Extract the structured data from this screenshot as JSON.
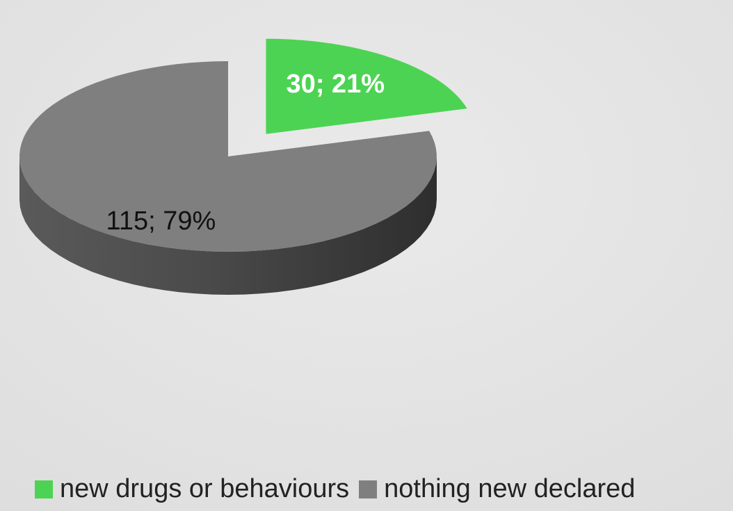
{
  "chart_data": {
    "type": "pie",
    "title": "",
    "slices": [
      {
        "name": "new drugs or behaviours",
        "value": 30,
        "percent": 21,
        "label": "30; 21%",
        "color": "#4cd353",
        "side_color": "#1f5c20",
        "exploded": true
      },
      {
        "name": "nothing new declared",
        "value": 115,
        "percent": 79,
        "label": "115; 79%",
        "color": "#7f7f7f",
        "side_color": "#3f3f3f",
        "exploded": false
      }
    ],
    "legend_position": "bottom",
    "style": "3d"
  },
  "legend": {
    "items": [
      {
        "label": "new drugs or behaviours",
        "color": "#4cd353"
      },
      {
        "label": "nothing new declared",
        "color": "#7f7f7f"
      }
    ]
  }
}
